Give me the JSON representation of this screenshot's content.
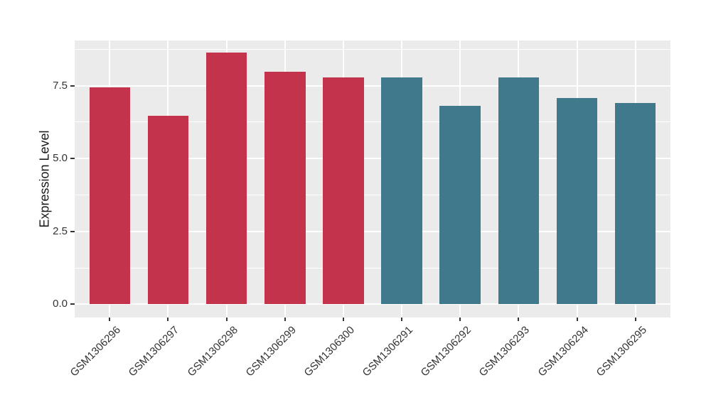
{
  "colors": {
    "page_background": "#FFFFFF",
    "panel_background": "#EBEBEB",
    "grid": "#FFFFFF",
    "tick_text": "#333333",
    "axis_title": "#1A1A1A",
    "bar_red": "#C3334C",
    "bar_teal": "#41798C"
  },
  "chart_data": {
    "type": "bar",
    "title": "",
    "xlabel": "",
    "ylabel": "Expression Level",
    "categories": [
      "GSM1306296",
      "GSM1306297",
      "GSM1306298",
      "GSM1306299",
      "GSM1306300",
      "GSM1306291",
      "GSM1306292",
      "GSM1306293",
      "GSM1306294",
      "GSM1306295"
    ],
    "values": [
      7.44,
      6.47,
      8.64,
      7.98,
      7.78,
      7.78,
      6.81,
      7.78,
      7.08,
      6.9
    ],
    "bar_colors": [
      "#C3334C",
      "#C3334C",
      "#C3334C",
      "#C3334C",
      "#C3334C",
      "#41798C",
      "#41798C",
      "#41798C",
      "#41798C",
      "#41798C"
    ],
    "y_ticks": {
      "values": [
        0,
        2.5,
        5,
        7.5
      ],
      "labels": [
        "0.0",
        "2.5",
        "5.0",
        "7.5"
      ]
    },
    "y_minor_ticks": [
      1.25,
      3.75,
      6.25,
      8.75
    ],
    "ylim": [
      -0.45,
      9.06
    ],
    "x_tick_rotation_deg": 45,
    "grid": "horizontal major+minor, vertical major at category centers",
    "legend": "none"
  }
}
